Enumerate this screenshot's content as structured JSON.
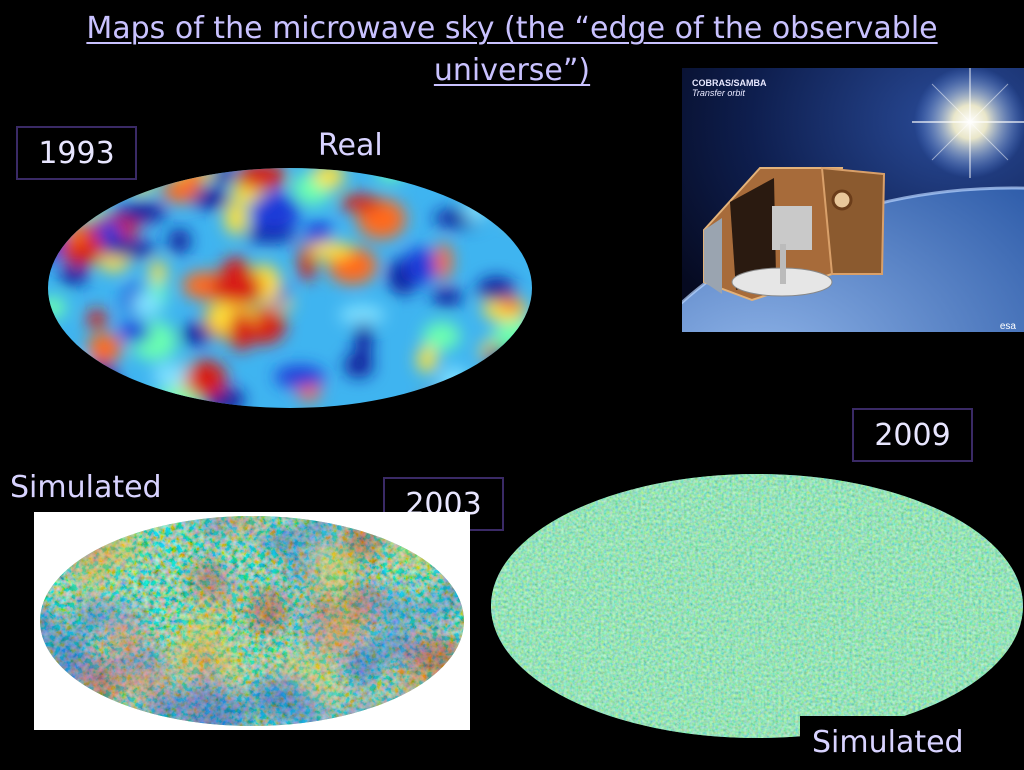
{
  "slide": {
    "title": "Maps of the microwave sky (the “edge of the observable universe”)"
  },
  "maps": [
    {
      "year": "1993",
      "label": "Real"
    },
    {
      "year": "2003",
      "label": "Simulated"
    },
    {
      "year": "2009",
      "label": "Simulated"
    }
  ],
  "photo": {
    "caption_title": "COBRAS/SAMBA",
    "caption_sub": "Transfer orbit",
    "watermark": "esa"
  },
  "colors": {
    "background": "#000000",
    "title": "#c9c2ff",
    "box_border": "#3a2a66"
  }
}
